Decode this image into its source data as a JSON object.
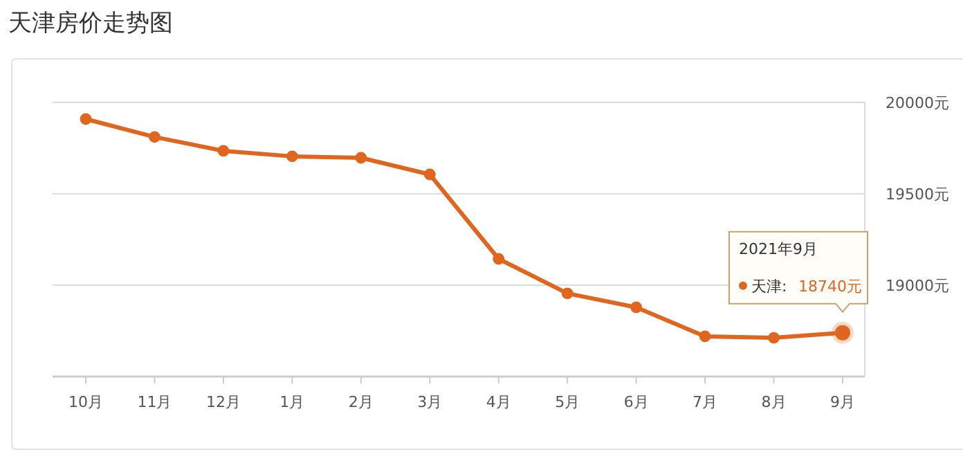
{
  "chart_data": {
    "type": "line",
    "title": "天津房价走势图",
    "categories": [
      "10月",
      "11月",
      "12月",
      "1月",
      "2月",
      "3月",
      "4月",
      "5月",
      "6月",
      "7月",
      "8月",
      "9月"
    ],
    "series": [
      {
        "name": "天津:",
        "color": "#e0661f",
        "values": [
          19909,
          19811,
          19735,
          19705,
          19697,
          19606,
          19144,
          18955,
          18879,
          18720,
          18712,
          18740
        ],
        "value_labels": [
          null,
          null,
          null,
          null,
          null,
          null,
          null,
          null,
          null,
          null,
          null,
          "18740元"
        ]
      }
    ],
    "ylim": [
      18500,
      20000
    ],
    "yticks": [
      {
        "value": 19000,
        "label": "19000元"
      },
      {
        "value": 19500,
        "label": "19500元"
      },
      {
        "value": 20000,
        "label": "20000元"
      }
    ],
    "annotations": [
      "2021年9月"
    ],
    "grid": "y",
    "marker": "circle",
    "line_style": "solid",
    "legend": "right"
  }
}
